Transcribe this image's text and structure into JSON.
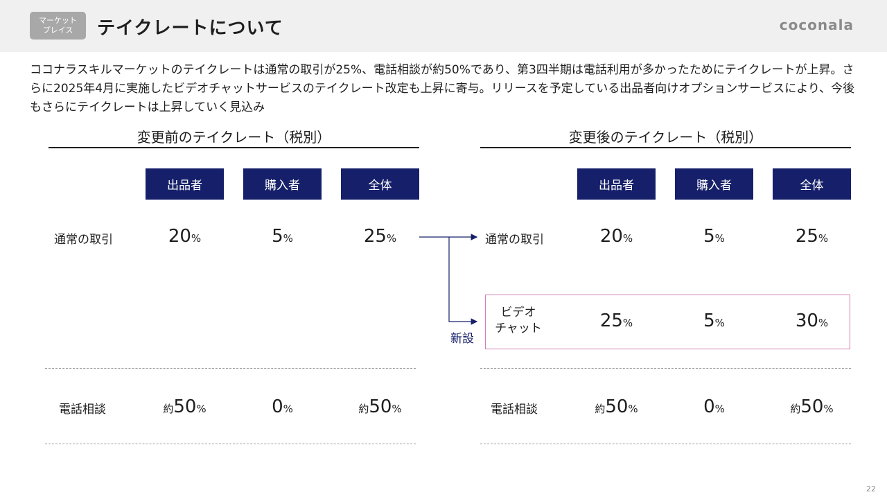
{
  "header": {
    "badge_line1": "マーケット",
    "badge_line2": "プレイス",
    "title": "テイクレートについて",
    "logo": "coconala"
  },
  "description": "ココナラスキルマーケットのテイクレートは通常の取引が25%、電話相談が約50%であり、第3四半期は電話利用が多かったためにテイクレートが上昇。さらに2025年4月に実施したビデオチャットサービスのテイクレート改定も上昇に寄与。リリースを予定している出品者向けオプションサービスにより、今後もさらにテイクレートは上昇していく見込み",
  "before": {
    "title": "変更前のテイクレート（税別）",
    "columns": [
      "出品者",
      "購入者",
      "全体"
    ],
    "rows": [
      {
        "label": "通常の取引",
        "values": [
          {
            "prefix": "",
            "num": "20",
            "unit": "%"
          },
          {
            "prefix": "",
            "num": "5",
            "unit": "%"
          },
          {
            "prefix": "",
            "num": "25",
            "unit": "%"
          }
        ]
      },
      {
        "label": "電話相談",
        "values": [
          {
            "prefix": "約",
            "num": "50",
            "unit": "%"
          },
          {
            "prefix": "",
            "num": "0",
            "unit": "%"
          },
          {
            "prefix": "約",
            "num": "50",
            "unit": "%"
          }
        ]
      }
    ]
  },
  "after": {
    "title": "変更後のテイクレート（税別）",
    "columns": [
      "出品者",
      "購入者",
      "全体"
    ],
    "rows": [
      {
        "label": "通常の取引",
        "values": [
          {
            "prefix": "",
            "num": "20",
            "unit": "%"
          },
          {
            "prefix": "",
            "num": "5",
            "unit": "%"
          },
          {
            "prefix": "",
            "num": "25",
            "unit": "%"
          }
        ]
      },
      {
        "label_line1": "ビデオ",
        "label_line2": "チャット",
        "values": [
          {
            "prefix": "",
            "num": "25",
            "unit": "%"
          },
          {
            "prefix": "",
            "num": "5",
            "unit": "%"
          },
          {
            "prefix": "",
            "num": "30",
            "unit": "%"
          }
        ]
      },
      {
        "label": "電話相談",
        "values": [
          {
            "prefix": "約",
            "num": "50",
            "unit": "%"
          },
          {
            "prefix": "",
            "num": "0",
            "unit": "%"
          },
          {
            "prefix": "約",
            "num": "50",
            "unit": "%"
          }
        ]
      }
    ],
    "new_label": "新設"
  },
  "colors": {
    "header_bg": "#f0f0f0",
    "navy": "#16206a",
    "highlight_border": "#d27ab2",
    "badge_bg": "#a8a8a8"
  },
  "page_number": "22"
}
